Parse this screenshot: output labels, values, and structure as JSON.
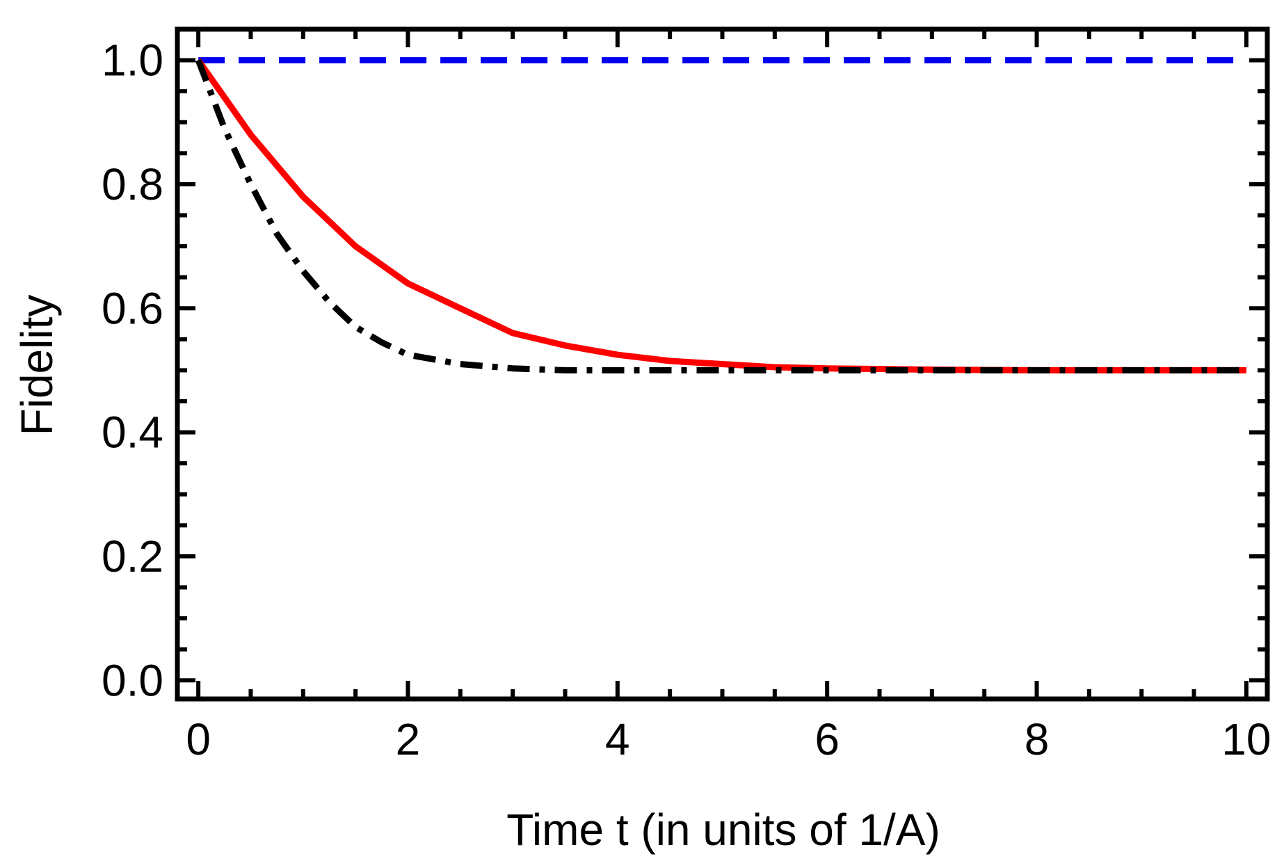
{
  "chart_data": {
    "type": "line",
    "title": "",
    "xlabel": "Time t (in units of 1/A)",
    "ylabel": "Fidelity",
    "xlim": [
      -0.2,
      10.2
    ],
    "ylim": [
      -0.03,
      1.05
    ],
    "x_ticks": [
      0,
      2,
      4,
      6,
      8,
      10
    ],
    "x_tick_labels": [
      "0",
      "2",
      "4",
      "6",
      "8",
      "10"
    ],
    "y_ticks": [
      0.0,
      0.2,
      0.4,
      0.6,
      0.8,
      1.0
    ],
    "y_tick_labels": [
      "0.0",
      "0.2",
      "0.4",
      "0.6",
      "0.8",
      "1.0"
    ],
    "grid": false,
    "legend": "none",
    "series": [
      {
        "style": "dashed",
        "color": "#0000ee",
        "x": [
          0,
          10
        ],
        "y": [
          1.0,
          1.0
        ]
      },
      {
        "style": "solid",
        "color": "#ff0000",
        "x": [
          0,
          0.25,
          0.5,
          0.75,
          1,
          1.25,
          1.5,
          1.75,
          2,
          2.5,
          3,
          3.5,
          4,
          4.5,
          5,
          5.5,
          6,
          7,
          8,
          9,
          10
        ],
        "y": [
          1.0,
          0.94,
          0.88,
          0.83,
          0.78,
          0.74,
          0.7,
          0.67,
          0.64,
          0.6,
          0.56,
          0.54,
          0.525,
          0.515,
          0.51,
          0.505,
          0.503,
          0.501,
          0.5,
          0.5,
          0.5
        ]
      },
      {
        "style": "dash-dot",
        "color": "#000000",
        "x": [
          0,
          0.25,
          0.5,
          0.75,
          1,
          1.25,
          1.5,
          1.75,
          2,
          2.5,
          3,
          3.5,
          4,
          5,
          6,
          7,
          8,
          9,
          10
        ],
        "y": [
          1.0,
          0.89,
          0.8,
          0.72,
          0.66,
          0.61,
          0.57,
          0.545,
          0.525,
          0.51,
          0.503,
          0.5,
          0.5,
          0.5,
          0.5,
          0.5,
          0.5,
          0.5,
          0.5
        ]
      }
    ]
  }
}
